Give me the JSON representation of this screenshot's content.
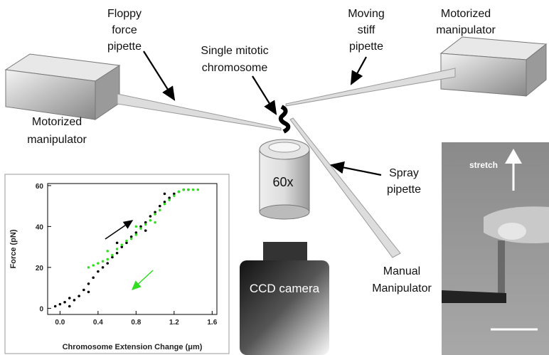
{
  "labels": {
    "floppy_force_pipette": [
      "Floppy",
      "force",
      "pipette"
    ],
    "single_mitotic_chromosome": [
      "Single mitotic",
      "chromosome"
    ],
    "moving_stiff_pipette": [
      "Moving",
      "stiff",
      "pipette"
    ],
    "motorized_manipulator_right": [
      "Motorized",
      "manipulator"
    ],
    "motorized_manipulator_left": [
      "Motorized",
      "manipulator"
    ],
    "objective": "60x",
    "spray_pipette": [
      "Spray",
      "pipette"
    ],
    "manual_manipulator": [
      "Manual",
      "Manipulator"
    ],
    "ccd_camera": "CCD camera",
    "stretch": "stretch"
  },
  "inset_chart": {
    "type": "scatter",
    "xlabel": "Chromosome Extension Change (μm)",
    "ylabel": "Force (pN)",
    "xlim": [
      -0.13,
      1.65
    ],
    "ylim": [
      -3,
      61
    ],
    "xticks": [
      {
        "value": 0,
        "label": "0.0"
      },
      0.4,
      0.8,
      1.2,
      1.6
    ],
    "yticks": [
      0,
      20,
      40,
      60
    ],
    "series": [
      {
        "color": "#000000",
        "x": [
          0.0,
          0.05,
          0.1,
          0.15,
          0.2,
          0.25,
          0.3,
          0.35,
          0.4,
          0.45,
          0.5,
          0.55,
          0.6,
          0.65,
          0.7,
          0.75,
          0.8,
          0.85,
          0.9,
          0.95,
          1.0,
          1.05,
          1.1,
          1.15,
          1.2,
          1.25,
          1.3,
          1.35,
          0.1,
          -0.05,
          0.3,
          0.6,
          0.9,
          1.1
        ],
        "values": [
          2,
          3,
          1,
          4,
          6,
          9,
          12,
          15,
          18,
          20,
          22,
          25,
          27,
          30,
          32,
          35,
          37,
          40,
          42,
          45,
          47,
          50,
          52,
          54,
          56,
          57,
          58,
          58,
          5,
          1,
          8,
          32,
          38,
          56
        ]
      },
      {
        "color": "#33dd22",
        "x": [
          0.3,
          0.35,
          0.4,
          0.45,
          0.5,
          0.55,
          0.6,
          0.65,
          0.7,
          0.75,
          0.8,
          0.85,
          0.9,
          0.95,
          1.0,
          1.05,
          1.1,
          1.15,
          1.2,
          1.25,
          1.3,
          1.35,
          1.4,
          1.45,
          0.5,
          0.8,
          1.0
        ],
        "values": [
          20,
          21,
          22,
          23,
          24,
          26,
          29,
          31,
          33,
          34,
          36,
          39,
          41,
          43,
          46,
          48,
          51,
          53,
          55,
          57,
          58,
          58,
          58,
          58,
          28,
          40,
          42
        ]
      }
    ]
  }
}
